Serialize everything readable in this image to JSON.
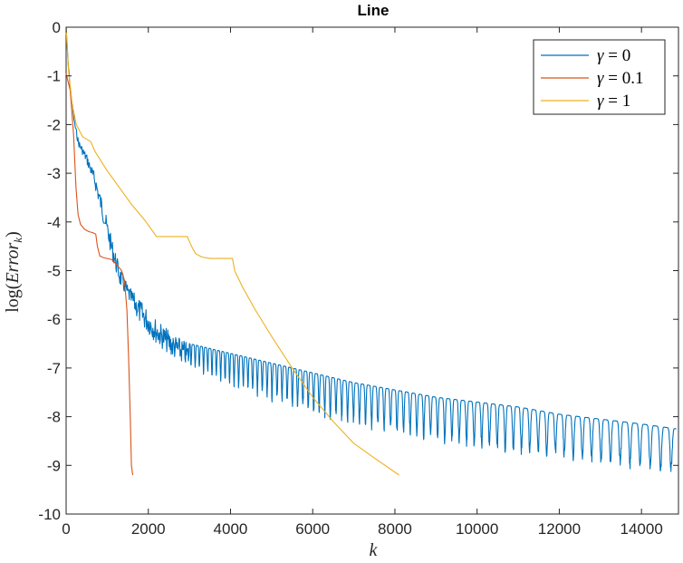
{
  "chart_data": {
    "type": "line",
    "title": "Line",
    "xlabel": "k",
    "ylabel": "log(Error_k)",
    "xlim": [
      0,
      14900
    ],
    "ylim": [
      -10,
      0
    ],
    "grid": false,
    "legend_position": "top-right",
    "x_ticks": [
      0,
      2000,
      4000,
      6000,
      8000,
      10000,
      12000,
      14000
    ],
    "x_tick_labels": [
      "0",
      "2000",
      "4000",
      "6000",
      "8000",
      "10000",
      "12000",
      "14000"
    ],
    "y_ticks": [
      0,
      -1,
      -2,
      -3,
      -4,
      -5,
      -6,
      -7,
      -8,
      -9,
      -10
    ],
    "y_tick_labels": [
      "0",
      "-1",
      "-2",
      "-3",
      "-4",
      "-5",
      "-6",
      "-7",
      "-8",
      "-9",
      "-10"
    ],
    "series": [
      {
        "name": "γ = 0",
        "color": "#0072BD",
        "style": "oscillating",
        "envelope_upper": [
          [
            0,
            0
          ],
          [
            50,
            -0.7
          ],
          [
            100,
            -1.2
          ],
          [
            200,
            -1.9
          ],
          [
            300,
            -2.3
          ],
          [
            500,
            -2.6
          ],
          [
            700,
            -3.0
          ],
          [
            900,
            -3.6
          ],
          [
            1100,
            -4.3
          ],
          [
            1300,
            -4.9
          ],
          [
            1500,
            -5.3
          ],
          [
            1800,
            -5.6
          ],
          [
            2200,
            -6.0
          ],
          [
            2600,
            -6.3
          ],
          [
            3000,
            -6.5
          ],
          [
            3500,
            -6.6
          ],
          [
            4000,
            -6.7
          ],
          [
            5000,
            -6.9
          ],
          [
            6000,
            -7.1
          ],
          [
            7000,
            -7.3
          ],
          [
            8000,
            -7.45
          ],
          [
            9000,
            -7.6
          ],
          [
            10000,
            -7.7
          ],
          [
            11000,
            -7.8
          ],
          [
            12000,
            -7.95
          ],
          [
            13000,
            -8.05
          ],
          [
            14000,
            -8.15
          ],
          [
            14850,
            -8.25
          ]
        ],
        "envelope_lower": [
          [
            0,
            0
          ],
          [
            50,
            -0.8
          ],
          [
            100,
            -1.3
          ],
          [
            200,
            -2.0
          ],
          [
            300,
            -2.45
          ],
          [
            500,
            -2.8
          ],
          [
            700,
            -3.3
          ],
          [
            900,
            -4.0
          ],
          [
            1100,
            -4.7
          ],
          [
            1300,
            -5.3
          ],
          [
            1500,
            -5.6
          ],
          [
            1800,
            -6.1
          ],
          [
            2200,
            -6.5
          ],
          [
            2600,
            -6.8
          ],
          [
            3000,
            -7.0
          ],
          [
            3500,
            -7.2
          ],
          [
            4000,
            -7.4
          ],
          [
            5000,
            -7.7
          ],
          [
            6000,
            -8.0
          ],
          [
            7000,
            -8.2
          ],
          [
            8000,
            -8.4
          ],
          [
            9000,
            -8.55
          ],
          [
            10000,
            -8.7
          ],
          [
            11000,
            -8.8
          ],
          [
            12000,
            -8.9
          ],
          [
            13000,
            -9.0
          ],
          [
            14000,
            -9.1
          ],
          [
            14850,
            -9.2
          ]
        ]
      },
      {
        "name": "γ = 0.1",
        "color": "#D95319",
        "style": "line",
        "points": [
          [
            0,
            -0.95
          ],
          [
            100,
            -1.3
          ],
          [
            180,
            -2.2
          ],
          [
            240,
            -3.3
          ],
          [
            290,
            -3.85
          ],
          [
            350,
            -4.05
          ],
          [
            450,
            -4.15
          ],
          [
            550,
            -4.2
          ],
          [
            650,
            -4.22
          ],
          [
            720,
            -4.25
          ],
          [
            760,
            -4.5
          ],
          [
            820,
            -4.7
          ],
          [
            900,
            -4.73
          ],
          [
            1000,
            -4.75
          ],
          [
            1100,
            -4.77
          ],
          [
            1150,
            -4.8
          ],
          [
            1250,
            -4.9
          ],
          [
            1350,
            -5.0
          ],
          [
            1420,
            -5.2
          ],
          [
            1480,
            -5.8
          ],
          [
            1520,
            -6.8
          ],
          [
            1560,
            -8.0
          ],
          [
            1590,
            -9.0
          ],
          [
            1620,
            -9.2
          ]
        ]
      },
      {
        "name": "γ = 1",
        "color": "#EDB120",
        "style": "line",
        "points": [
          [
            0,
            0
          ],
          [
            60,
            -0.9
          ],
          [
            150,
            -1.6
          ],
          [
            250,
            -2.0
          ],
          [
            400,
            -2.25
          ],
          [
            600,
            -2.35
          ],
          [
            700,
            -2.55
          ],
          [
            1000,
            -2.95
          ],
          [
            1300,
            -3.3
          ],
          [
            1600,
            -3.65
          ],
          [
            1900,
            -3.95
          ],
          [
            2200,
            -4.3
          ],
          [
            2500,
            -4.3
          ],
          [
            2800,
            -4.3
          ],
          [
            2950,
            -4.3
          ],
          [
            3050,
            -4.5
          ],
          [
            3150,
            -4.65
          ],
          [
            3300,
            -4.72
          ],
          [
            3500,
            -4.75
          ],
          [
            3800,
            -4.75
          ],
          [
            4050,
            -4.75
          ],
          [
            4100,
            -5.0
          ],
          [
            4300,
            -5.35
          ],
          [
            4600,
            -5.8
          ],
          [
            5000,
            -6.35
          ],
          [
            5500,
            -7.0
          ],
          [
            6000,
            -7.6
          ],
          [
            6500,
            -8.1
          ],
          [
            7000,
            -8.55
          ],
          [
            7500,
            -8.85
          ],
          [
            8100,
            -9.2
          ]
        ]
      }
    ]
  }
}
